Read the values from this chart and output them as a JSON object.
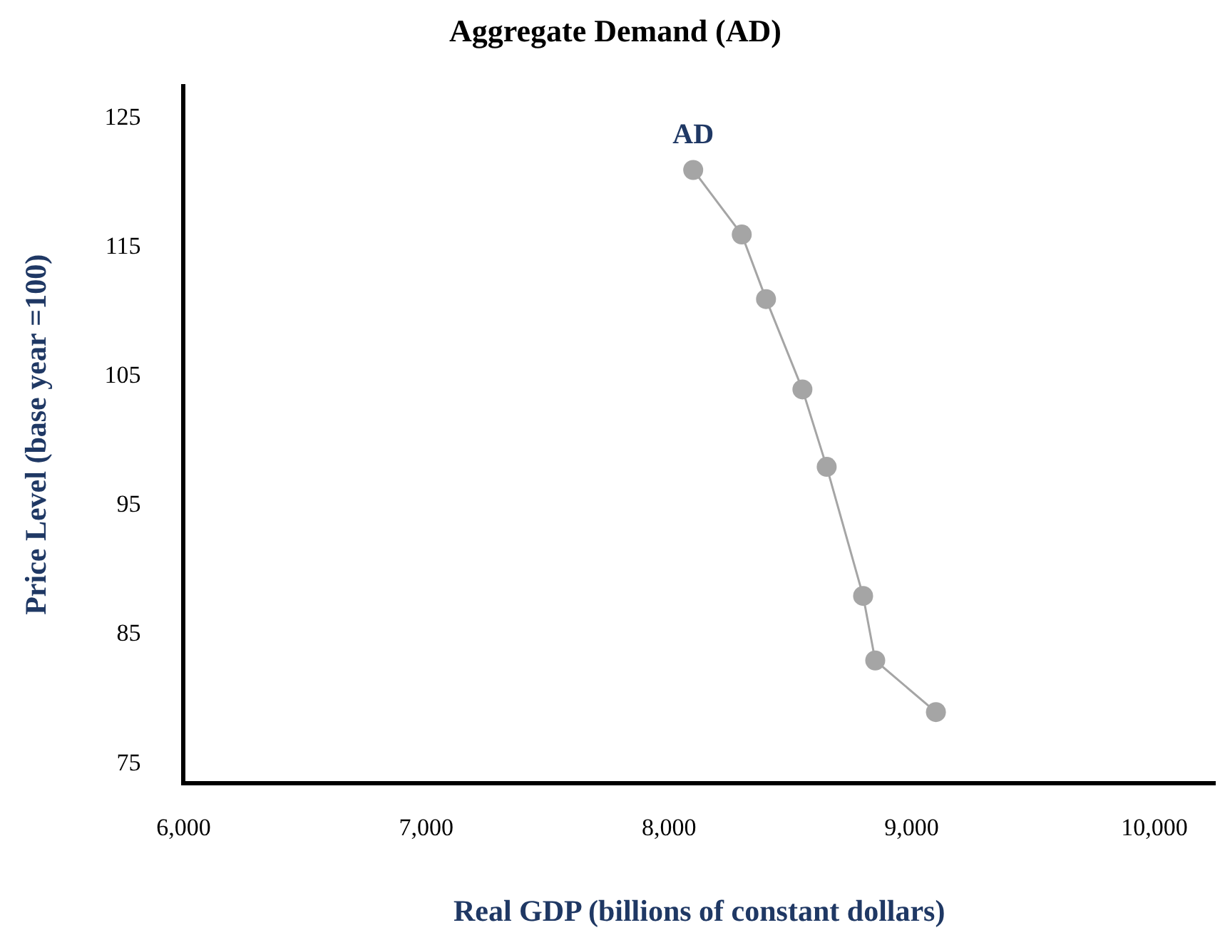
{
  "chart_data": {
    "type": "line",
    "title": "Aggregate Demand (AD)",
    "xlabel": "Real GDP (billions of constant dollars)",
    "ylabel": "Price Level (base year =100)",
    "x": [
      8100,
      8300,
      8400,
      8550,
      8650,
      8800,
      8850,
      9100
    ],
    "series": [
      {
        "color": "#a5a5a5",
        "values": [
          121,
          116,
          111,
          104,
          98,
          88,
          83,
          79
        ]
      }
    ],
    "xlim": [
      6000,
      10250
    ],
    "xticks": [
      {
        "value": 6000,
        "label": "6,000"
      },
      {
        "value": 7000,
        "label": "7,000"
      },
      {
        "value": 8000,
        "label": "8,000"
      },
      {
        "value": 9000,
        "label": "9,000"
      },
      {
        "value": 10000,
        "label": "10,000"
      }
    ],
    "ylim": [
      73.5,
      127.5
    ],
    "yticks": [
      75,
      85,
      95,
      105,
      115,
      125
    ],
    "grid": false,
    "legend": false,
    "marker": "circle",
    "line_style": "solid",
    "annotations": [
      {
        "text": "AD",
        "x": 8100,
        "y": 121
      }
    ]
  }
}
